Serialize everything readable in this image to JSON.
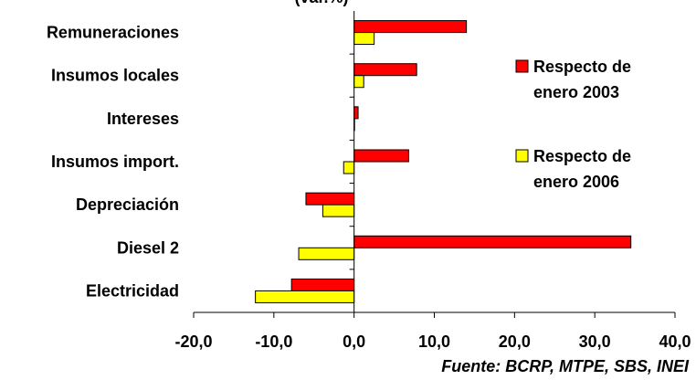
{
  "chart_data": {
    "type": "bar",
    "orientation": "horizontal",
    "title_fragment": "(var.%)",
    "categories": [
      "Remuneraciones",
      "Insumos locales",
      "Intereses",
      "Insumos import.",
      "Depreciación",
      "Diesel 2",
      "Electricidad"
    ],
    "series": [
      {
        "name": "Respecto de enero 2003",
        "name_lines": [
          "Respecto de",
          "enero 2003"
        ],
        "color": "#ff0000",
        "values": [
          14.0,
          7.8,
          0.5,
          6.8,
          -6.0,
          34.5,
          -7.8
        ]
      },
      {
        "name": "Respecto de enero 2006",
        "name_lines": [
          "Respecto de",
          "enero 2006"
        ],
        "color": "#ffff00",
        "values": [
          2.5,
          1.2,
          0.0,
          -1.3,
          -3.9,
          -6.9,
          -12.3
        ]
      }
    ],
    "xlim": [
      -20,
      40
    ],
    "xticks": [
      -20,
      -10,
      0,
      10,
      20,
      30,
      40
    ],
    "tick_labels": [
      "-20,0",
      "-10,0",
      "0,0",
      "10,0",
      "20,0",
      "30,0",
      "40,0"
    ],
    "grid": false,
    "legend_position": "right"
  },
  "source": "Fuente: BCRP, MTPE, SBS, INEI"
}
